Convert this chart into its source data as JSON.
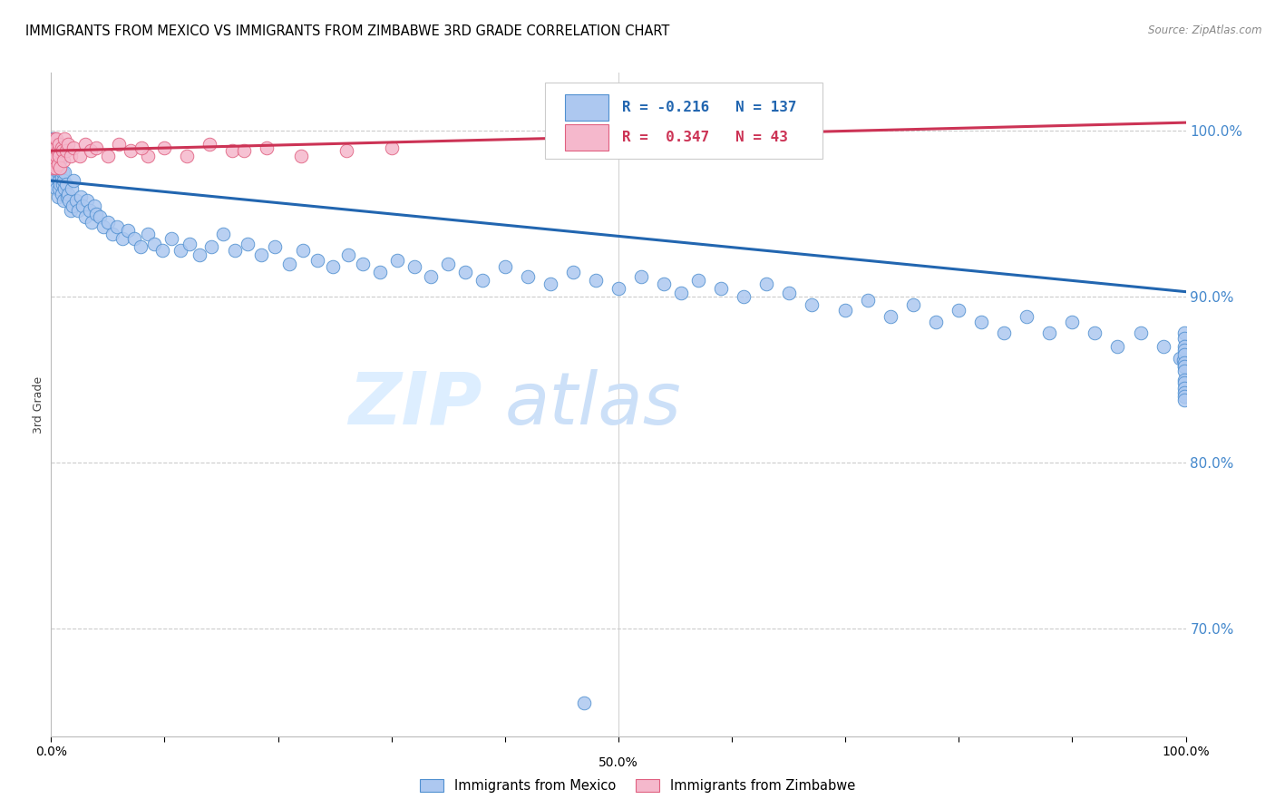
{
  "title": "IMMIGRANTS FROM MEXICO VS IMMIGRANTS FROM ZIMBABWE 3RD GRADE CORRELATION CHART",
  "source": "Source: ZipAtlas.com",
  "ylabel": "3rd Grade",
  "xlim": [
    0.0,
    1.0
  ],
  "ylim": [
    0.635,
    1.035
  ],
  "yticks": [
    0.7,
    0.8,
    0.9,
    1.0
  ],
  "ytick_labels": [
    "70.0%",
    "80.0%",
    "90.0%",
    "100.0%"
  ],
  "xticks": [
    0.0,
    0.1,
    0.2,
    0.3,
    0.4,
    0.5,
    0.6,
    0.7,
    0.8,
    0.9,
    1.0
  ],
  "xtick_labels": [
    "0.0%",
    "",
    "",
    "",
    "",
    "",
    "",
    "",
    "",
    "",
    "100.0%"
  ],
  "x50_label": "50.0%",
  "legend_label1": "Immigrants from Mexico",
  "legend_label2": "Immigrants from Zimbabwe",
  "R_mexico": -0.216,
  "N_mexico": 137,
  "R_zimbabwe": 0.347,
  "N_zimbabwe": 43,
  "blue_fill": "#adc8f0",
  "pink_fill": "#f5b8cc",
  "blue_edge": "#5090d0",
  "pink_edge": "#e06080",
  "blue_line": "#2266b0",
  "pink_line": "#cc3355",
  "watermark_zip_color": "#ddeeff",
  "watermark_atlas_color": "#cce0f8",
  "blue_trendline_start_y": 0.97,
  "blue_trendline_end_y": 0.903,
  "pink_trendline_start_y": 0.988,
  "pink_trendline_end_y": 1.005,
  "mexico_x": [
    0.001,
    0.001,
    0.001,
    0.002,
    0.002,
    0.002,
    0.002,
    0.003,
    0.003,
    0.003,
    0.003,
    0.003,
    0.004,
    0.004,
    0.004,
    0.004,
    0.005,
    0.005,
    0.005,
    0.005,
    0.006,
    0.006,
    0.006,
    0.007,
    0.007,
    0.007,
    0.008,
    0.008,
    0.008,
    0.009,
    0.009,
    0.01,
    0.01,
    0.011,
    0.011,
    0.012,
    0.012,
    0.013,
    0.014,
    0.015,
    0.016,
    0.017,
    0.018,
    0.019,
    0.02,
    0.022,
    0.024,
    0.026,
    0.028,
    0.03,
    0.032,
    0.034,
    0.036,
    0.038,
    0.04,
    0.043,
    0.046,
    0.05,
    0.054,
    0.058,
    0.063,
    0.068,
    0.073,
    0.079,
    0.085,
    0.091,
    0.098,
    0.106,
    0.114,
    0.122,
    0.131,
    0.141,
    0.152,
    0.162,
    0.173,
    0.185,
    0.197,
    0.21,
    0.222,
    0.235,
    0.248,
    0.262,
    0.275,
    0.29,
    0.305,
    0.32,
    0.335,
    0.35,
    0.365,
    0.38,
    0.4,
    0.42,
    0.44,
    0.46,
    0.48,
    0.5,
    0.52,
    0.54,
    0.555,
    0.57,
    0.59,
    0.61,
    0.63,
    0.65,
    0.67,
    0.7,
    0.72,
    0.74,
    0.76,
    0.78,
    0.8,
    0.82,
    0.84,
    0.86,
    0.88,
    0.9,
    0.92,
    0.94,
    0.96,
    0.98,
    0.995,
    0.998,
    0.999,
    0.999,
    0.999,
    0.999,
    0.999,
    0.999,
    0.999,
    0.999,
    0.999,
    0.999,
    0.999,
    0.999,
    0.999,
    0.999,
    0.999
  ],
  "mexico_y": [
    0.982,
    0.978,
    0.995,
    0.98,
    0.975,
    0.992,
    0.97,
    0.988,
    0.984,
    0.976,
    0.97,
    0.995,
    0.982,
    0.978,
    0.968,
    0.99,
    0.985,
    0.98,
    0.972,
    0.965,
    0.975,
    0.988,
    0.96,
    0.978,
    0.97,
    0.965,
    0.982,
    0.975,
    0.968,
    0.972,
    0.962,
    0.975,
    0.968,
    0.97,
    0.958,
    0.965,
    0.975,
    0.968,
    0.96,
    0.962,
    0.958,
    0.952,
    0.965,
    0.955,
    0.97,
    0.958,
    0.952,
    0.96,
    0.955,
    0.948,
    0.958,
    0.952,
    0.945,
    0.955,
    0.95,
    0.948,
    0.942,
    0.945,
    0.938,
    0.942,
    0.935,
    0.94,
    0.935,
    0.93,
    0.938,
    0.932,
    0.928,
    0.935,
    0.928,
    0.932,
    0.925,
    0.93,
    0.938,
    0.928,
    0.932,
    0.925,
    0.93,
    0.92,
    0.928,
    0.922,
    0.918,
    0.925,
    0.92,
    0.915,
    0.922,
    0.918,
    0.912,
    0.92,
    0.915,
    0.91,
    0.918,
    0.912,
    0.908,
    0.915,
    0.91,
    0.905,
    0.912,
    0.908,
    0.902,
    0.91,
    0.905,
    0.9,
    0.908,
    0.902,
    0.895,
    0.892,
    0.898,
    0.888,
    0.895,
    0.885,
    0.892,
    0.885,
    0.878,
    0.888,
    0.878,
    0.885,
    0.878,
    0.87,
    0.878,
    0.87,
    0.863,
    0.862,
    0.858,
    0.878,
    0.875,
    0.87,
    0.868,
    0.865,
    0.86,
    0.858,
    0.855,
    0.85,
    0.848,
    0.845,
    0.842,
    0.84,
    0.838
  ],
  "zimbabwe_x": [
    0.001,
    0.001,
    0.002,
    0.002,
    0.002,
    0.003,
    0.003,
    0.003,
    0.004,
    0.004,
    0.005,
    0.005,
    0.006,
    0.006,
    0.007,
    0.007,
    0.008,
    0.009,
    0.01,
    0.011,
    0.012,
    0.013,
    0.015,
    0.017,
    0.02,
    0.025,
    0.03,
    0.035,
    0.04,
    0.05,
    0.06,
    0.07,
    0.085,
    0.1,
    0.12,
    0.14,
    0.16,
    0.19,
    0.22,
    0.26,
    0.3,
    0.17,
    0.08
  ],
  "zimbabwe_y": [
    0.985,
    0.978,
    0.992,
    0.988,
    0.98,
    0.995,
    0.988,
    0.982,
    0.99,
    0.978,
    0.985,
    0.995,
    0.988,
    0.98,
    0.992,
    0.985,
    0.978,
    0.99,
    0.988,
    0.982,
    0.995,
    0.988,
    0.992,
    0.985,
    0.99,
    0.985,
    0.992,
    0.988,
    0.99,
    0.985,
    0.992,
    0.988,
    0.985,
    0.99,
    0.985,
    0.992,
    0.988,
    0.99,
    0.985,
    0.988,
    0.99,
    0.988,
    0.99
  ],
  "outlier_x": [
    0.47
  ],
  "outlier_y": [
    0.655
  ]
}
